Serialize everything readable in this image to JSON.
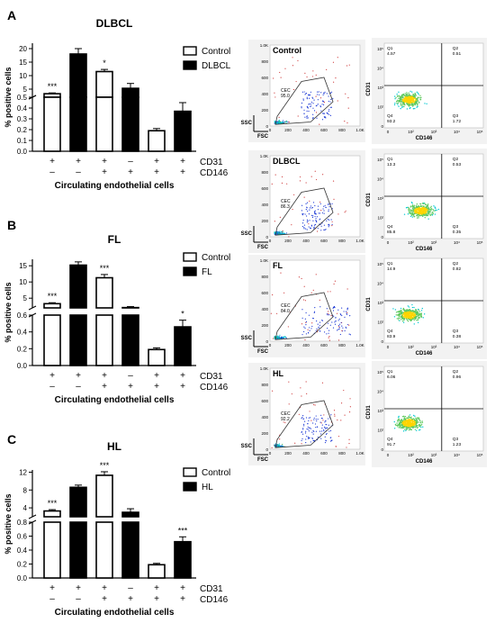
{
  "panel_labels": [
    "A",
    "B",
    "C"
  ],
  "sign_rows": {
    "cd31": [
      "+",
      "+",
      "+",
      "–",
      "+",
      "+"
    ],
    "cd146": [
      "–",
      "–",
      "+",
      "+",
      "+",
      "+"
    ]
  },
  "chart_data": [
    {
      "type": "bar",
      "title": "DLBCL",
      "ylabel": "% positive cells",
      "xlabel": "Circulating endothelial cells",
      "row_labels": [
        "CD31",
        "CD146"
      ],
      "legend": [
        "Control",
        "DLBCL"
      ],
      "axis": {
        "upper_ylim": [
          2,
          22
        ],
        "upper_ticks": [
          "20",
          "15",
          "10",
          "5"
        ],
        "lower_ylim": [
          0,
          0.5
        ],
        "lower_ticks": [
          "0.5",
          "0.4",
          "0.3",
          "0.2",
          "0.1",
          "0.0"
        ]
      },
      "series": [
        {
          "name": "Control",
          "values": [
            3.3,
            11.5,
            0.19
          ],
          "errors": [
            0.3,
            0.8,
            0.02
          ]
        },
        {
          "name": "DLBCL",
          "values": [
            18.0,
            5.3,
            0.37
          ],
          "errors": [
            2.0,
            1.8,
            0.08
          ]
        }
      ],
      "significance": [
        "***",
        "",
        "*",
        "",
        "",
        ""
      ]
    },
    {
      "type": "bar",
      "title": "FL",
      "ylabel": "% positive cells",
      "xlabel": "Circulating endothelial cells",
      "row_labels": [
        "CD31",
        "CD146"
      ],
      "legend": [
        "Control",
        "FL"
      ],
      "axis": {
        "upper_ylim": [
          2,
          17
        ],
        "upper_ticks": [
          "15",
          "10",
          "5"
        ],
        "lower_ylim": [
          0,
          0.6
        ],
        "lower_ticks": [
          "0.6",
          "0.4",
          "0.2",
          "0.0"
        ]
      },
      "series": [
        {
          "name": "Control",
          "values": [
            3.3,
            11.3,
            0.19
          ],
          "errors": [
            0.3,
            1.0,
            0.02
          ]
        },
        {
          "name": "FL",
          "values": [
            15.2,
            2.1,
            0.46
          ],
          "errors": [
            1.0,
            0.3,
            0.08
          ]
        }
      ],
      "significance": [
        "***",
        "",
        "***",
        "",
        "",
        "*"
      ]
    },
    {
      "type": "bar",
      "title": "HL",
      "ylabel": "% positive cells",
      "xlabel": "Circulating endothelial cells",
      "row_labels": [
        "CD31",
        "CD146"
      ],
      "legend": [
        "Control",
        "HL"
      ],
      "axis": {
        "upper_ylim": [
          2,
          12.5
        ],
        "upper_ticks": [
          "12",
          "8",
          "4"
        ],
        "lower_ylim": [
          0,
          0.8
        ],
        "lower_ticks": [
          "0.8",
          "0.6",
          "0.4",
          "0.2",
          "0.0"
        ]
      },
      "series": [
        {
          "name": "Control",
          "values": [
            3.3,
            11.3,
            0.19
          ],
          "errors": [
            0.3,
            0.8,
            0.02
          ]
        },
        {
          "name": "HL",
          "values": [
            8.6,
            3.0,
            0.52
          ],
          "errors": [
            0.5,
            0.8,
            0.07
          ]
        }
      ],
      "significance": [
        "***",
        "",
        "***",
        "",
        "",
        "***"
      ]
    }
  ],
  "flow_panels": [
    {
      "label": "Control",
      "cec_label": "CEC",
      "cec_value": "95.0",
      "axes": {
        "ssc": "SSC",
        "fsc": "FSC",
        "cd31": "CD31",
        "cd146": "CD146"
      },
      "quadrants": {
        "q1": "Q1",
        "q1_val": "4.57",
        "q2": "Q2",
        "q2_val": "0.51",
        "q3": "Q3",
        "q3_val": "1.72",
        "q4": "Q4",
        "q4_val": "93.2"
      }
    },
    {
      "label": "DLBCL",
      "cec_label": "CEC",
      "cec_value": "86.3",
      "axes": {
        "ssc": "SSC",
        "fsc": "FSC",
        "cd31": "CD31",
        "cd146": "CD146"
      },
      "quadrants": {
        "q1": "Q1",
        "q1_val": "13.3",
        "q2": "Q2",
        "q2_val": "0.53",
        "q3": "Q3",
        "q3_val": "0.35",
        "q4": "Q4",
        "q4_val": "85.8"
      }
    },
    {
      "label": "FL",
      "cec_label": "CEC",
      "cec_value": "84.0",
      "axes": {
        "ssc": "SSC",
        "fsc": "FSC",
        "cd31": "CD31",
        "cd146": "CD146"
      },
      "quadrants": {
        "q1": "Q1",
        "q1_val": "14.9",
        "q2": "Q2",
        "q2_val": "0.82",
        "q3": "Q3",
        "q3_val": "0.38",
        "q4": "Q4",
        "q4_val": "83.9"
      }
    },
    {
      "label": "HL",
      "cec_label": "CEC",
      "cec_value": "92.2",
      "axes": {
        "ssc": "SSC",
        "fsc": "FSC",
        "cd31": "CD31",
        "cd146": "CD146"
      },
      "quadrants": {
        "q1": "Q1",
        "q1_val": "6.06",
        "q2": "Q2",
        "q2_val": "0.96",
        "q3": "Q3",
        "q3_val": "1.23",
        "q4": "Q4",
        "q4_val": "91.7"
      }
    }
  ],
  "flow_axis_ticks": {
    "ssc_y": [
      "1.0K",
      "800",
      "600",
      "400",
      "200",
      "0"
    ],
    "fsc_x": [
      "0",
      "200",
      "400",
      "600",
      "800",
      "1.0K"
    ],
    "log_y": [
      "10⁵",
      "10⁴",
      "10³",
      "10²",
      "0"
    ],
    "log_x": [
      "0",
      "10²",
      "10³",
      "10⁴",
      "10⁵"
    ]
  },
  "colors": {
    "bar_fill": "#000000",
    "bar_open": "#ffffff",
    "panel_bg": "#f2f2f2",
    "density_low": "#1f3bd6",
    "density_mid": "#00c8d2",
    "density_high": "#ffd400"
  }
}
